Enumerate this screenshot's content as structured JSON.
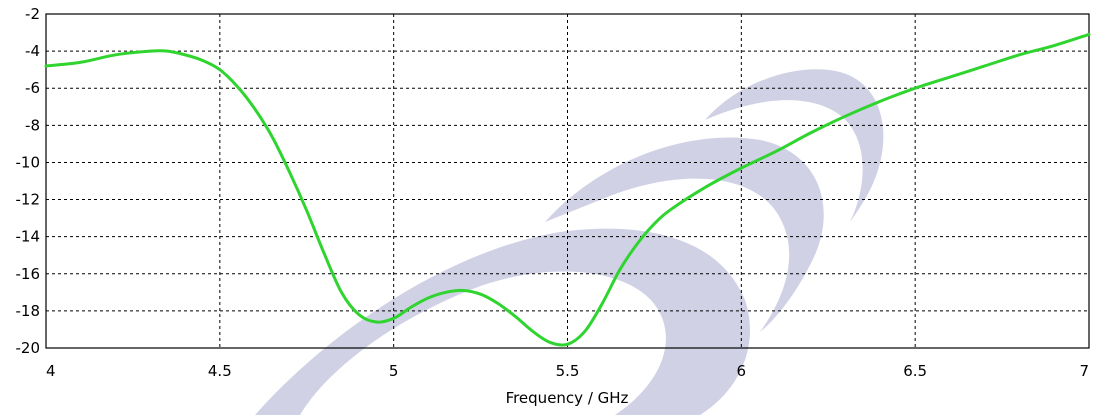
{
  "chart_data": {
    "type": "line",
    "xlabel": "Frequency / GHz",
    "ylabel": "",
    "xlim": [
      4,
      7
    ],
    "ylim": [
      -20,
      -2
    ],
    "x_ticks": [
      "4",
      "4.5",
      "5",
      "5.5",
      "6",
      "6.5",
      "7"
    ],
    "y_ticks": [
      "-2",
      "-4",
      "-6",
      "-8",
      "-10",
      "-12",
      "-14",
      "-16",
      "-18",
      "-20"
    ],
    "grid": true,
    "series": [
      {
        "color": "#2fd42f",
        "x": [
          4.0,
          4.1,
          4.2,
          4.3,
          4.35,
          4.4,
          4.45,
          4.5,
          4.55,
          4.6,
          4.65,
          4.7,
          4.75,
          4.8,
          4.85,
          4.9,
          4.95,
          5.0,
          5.05,
          5.1,
          5.15,
          5.2,
          5.25,
          5.3,
          5.35,
          5.4,
          5.45,
          5.5,
          5.55,
          5.6,
          5.65,
          5.7,
          5.75,
          5.8,
          5.9,
          6.0,
          6.1,
          6.2,
          6.3,
          6.4,
          6.5,
          6.6,
          6.7,
          6.8,
          6.9,
          7.0
        ],
        "y": [
          -4.8,
          -4.6,
          -4.2,
          -4.0,
          -4.0,
          -4.2,
          -4.5,
          -5.0,
          -5.9,
          -7.1,
          -8.6,
          -10.5,
          -12.6,
          -14.9,
          -17.0,
          -18.2,
          -18.6,
          -18.4,
          -17.8,
          -17.3,
          -17.0,
          -16.9,
          -17.1,
          -17.6,
          -18.3,
          -19.1,
          -19.7,
          -19.8,
          -19.1,
          -17.6,
          -15.8,
          -14.4,
          -13.3,
          -12.5,
          -11.3,
          -10.3,
          -9.4,
          -8.4,
          -7.5,
          -6.7,
          -6.0,
          -5.4,
          -4.8,
          -4.2,
          -3.7,
          -3.1
        ]
      }
    ]
  }
}
